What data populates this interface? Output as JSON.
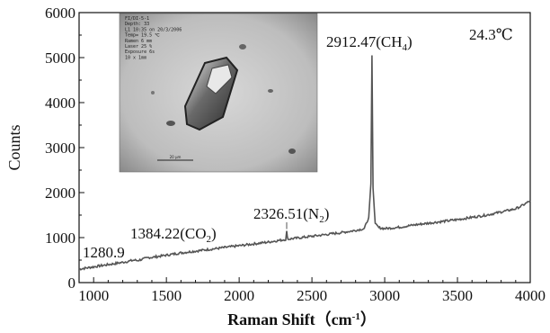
{
  "chart_data": {
    "type": "line",
    "xlabel": "Raman Shift（cm",
    "xlabel_sup": "-1",
    "xlabel_close": "）",
    "ylabel": "Counts",
    "xlim": [
      900,
      4000
    ],
    "ylim": [
      0,
      6000
    ],
    "xticks": [
      1000,
      1500,
      2000,
      2500,
      3000,
      3500,
      4000
    ],
    "yticks": [
      0,
      1000,
      2000,
      3000,
      4000,
      5000,
      6000
    ],
    "grid": false,
    "temperature": "24.3℃",
    "peaks": [
      {
        "x": 1280.9,
        "y": 430,
        "text": "1280.9",
        "subs": []
      },
      {
        "x": 1384.22,
        "y": 520,
        "text": "1384.22(CO",
        "sub": "2",
        "close": ")"
      },
      {
        "x": 2326.51,
        "y": 1150,
        "text": "2326.51(N",
        "sub": "2",
        "close": ")"
      },
      {
        "x": 2912.47,
        "y": 5050,
        "text": "2912.47(CH",
        "sub": "4",
        "close": ")"
      }
    ],
    "series": [
      {
        "x": [
          900,
          1000,
          1100,
          1200,
          1280.9,
          1300,
          1384.22,
          1400,
          1500,
          1600,
          1700,
          1800,
          1900,
          2000,
          2100,
          2200,
          2300,
          2320,
          2326.51,
          2335,
          2400,
          2500,
          2600,
          2700,
          2800,
          2860,
          2890,
          2905,
          2912.47,
          2920,
          2935,
          2960,
          3000,
          3100,
          3200,
          3300,
          3400,
          3500,
          3600,
          3700,
          3800,
          3900,
          3950,
          4000
        ],
        "y": [
          300,
          350,
          400,
          450,
          500,
          490,
          560,
          560,
          610,
          660,
          700,
          740,
          780,
          820,
          860,
          900,
          950,
          960,
          1130,
          965,
          990,
          1030,
          1070,
          1110,
          1160,
          1200,
          1450,
          2200,
          5050,
          2100,
          1300,
          1220,
          1200,
          1230,
          1280,
          1320,
          1360,
          1400,
          1450,
          1500,
          1570,
          1640,
          1720,
          1820
        ]
      }
    ]
  },
  "inset": {
    "lines": [
      "FI/DI-5-1",
      "Depth: 33",
      "L1 10:35 on 20/3/2006",
      "Temp= 19.5 ℃",
      "Ramen 6 mm",
      "Laser 25 %",
      "Exposure 6s",
      "10 x 1mm"
    ],
    "scalebar_label": "20 μm"
  }
}
